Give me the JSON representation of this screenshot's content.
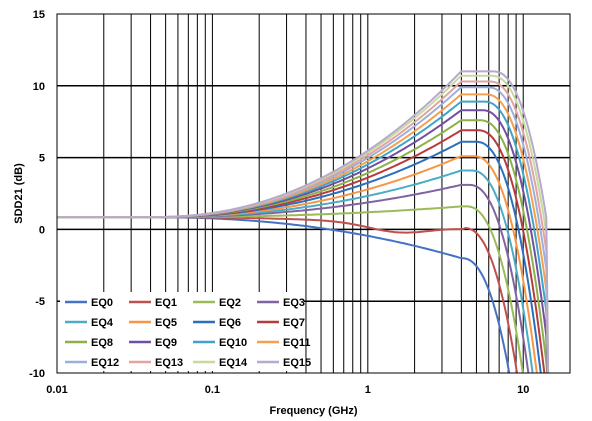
{
  "chart_data": {
    "type": "line",
    "xlabel": "Frequency (GHz)",
    "ylabel": "SDD21 (dB)",
    "xscale": "log",
    "xlim": [
      0.01,
      20
    ],
    "ylim": [
      -10,
      15
    ],
    "x_ticks": [
      "0.01",
      "0.1",
      "1",
      "10"
    ],
    "y_ticks": [
      "15",
      "10",
      "5",
      "0",
      "-5",
      "-10"
    ],
    "grid": true,
    "legend_position": "bottom-left",
    "series": [
      {
        "name": "EQ0",
        "color": "#4472C4",
        "dc": 0.85,
        "peak": -2.0
      },
      {
        "name": "EQ1",
        "color": "#C0504D",
        "dc": 0.85,
        "peak": 0.1
      },
      {
        "name": "EQ2",
        "color": "#9BBB59",
        "dc": 0.85,
        "peak": 1.6
      },
      {
        "name": "EQ3",
        "color": "#8064A2",
        "dc": 0.85,
        "peak": 3.1
      },
      {
        "name": "EQ4",
        "color": "#4BACC6",
        "dc": 0.85,
        "peak": 4.1
      },
      {
        "name": "EQ5",
        "color": "#F79646",
        "dc": 0.85,
        "peak": 5.1
      },
      {
        "name": "EQ6",
        "color": "#2C6FBB",
        "dc": 0.85,
        "peak": 6.1
      },
      {
        "name": "EQ7",
        "color": "#B83B3B",
        "dc": 0.85,
        "peak": 6.9
      },
      {
        "name": "EQ8",
        "color": "#8DB04A",
        "dc": 0.85,
        "peak": 7.6
      },
      {
        "name": "EQ9",
        "color": "#7050A0",
        "dc": 0.85,
        "peak": 8.3
      },
      {
        "name": "EQ10",
        "color": "#3FA4C8",
        "dc": 0.85,
        "peak": 8.9
      },
      {
        "name": "EQ11",
        "color": "#F5A04E",
        "dc": 0.85,
        "peak": 9.4
      },
      {
        "name": "EQ12",
        "color": "#9DB0DA",
        "dc": 0.85,
        "peak": 9.9
      },
      {
        "name": "EQ13",
        "color": "#E2A3A1",
        "dc": 0.85,
        "peak": 10.3
      },
      {
        "name": "EQ14",
        "color": "#C6DA9E",
        "dc": 0.85,
        "peak": 10.7
      },
      {
        "name": "EQ15",
        "color": "#B7A8CE",
        "dc": 0.85,
        "peak": 11.0
      }
    ]
  }
}
